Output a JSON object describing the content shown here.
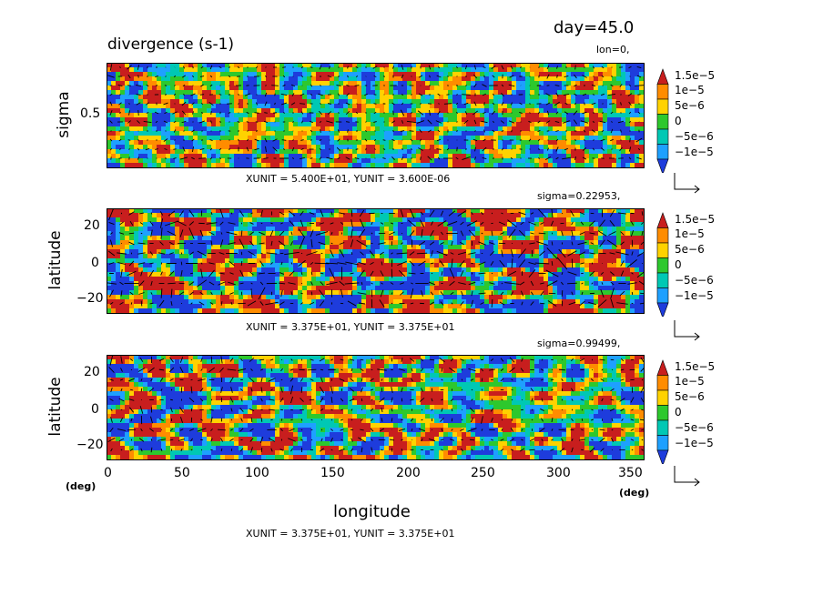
{
  "header": {
    "day_label": "day=45.0",
    "title": "divergence (s-1)"
  },
  "chart_data": [
    {
      "type": "heatmap",
      "panel_label": "lon=0,",
      "xlabel": "",
      "ylabel": "sigma",
      "yticks": [
        "0.5"
      ],
      "units_note": "XUNIT = 5.400E+01, YUNIT = 3.600E-06",
      "ylim": [
        0.0,
        1.0
      ],
      "overlay": "wind vectors"
    },
    {
      "type": "heatmap",
      "panel_label": "sigma=0.22953,",
      "xlabel": "",
      "ylabel": "latitude",
      "yticks": [
        "20",
        "0",
        "−20"
      ],
      "ylim": [
        -28,
        28
      ],
      "units_note": "XUNIT = 3.375E+01, YUNIT = 3.375E+01",
      "overlay": "wind vectors"
    },
    {
      "type": "heatmap",
      "panel_label": "sigma=0.99499,",
      "xlabel": "longitude",
      "ylabel": "latitude",
      "yticks": [
        "20",
        "0",
        "−20"
      ],
      "xticks": [
        "0",
        "50",
        "100",
        "150",
        "200",
        "250",
        "300",
        "350"
      ],
      "xlim": [
        0,
        356
      ],
      "ylim": [
        -28,
        28
      ],
      "x_unit_left": "(deg)",
      "x_unit_right": "(deg)",
      "units_note": "XUNIT = 3.375E+01, YUNIT = 3.375E+01",
      "overlay": "wind vectors"
    }
  ],
  "colorbar": {
    "levels": [
      "1.5e−5",
      "1e−5",
      "5e−6",
      "0",
      "−5e−6",
      "−1e−5"
    ],
    "colors": [
      "#c81e1e",
      "#ff8c00",
      "#ffd200",
      "#2dc82d",
      "#00c8b4",
      "#1ea0ff",
      "#1e3cdc"
    ]
  }
}
